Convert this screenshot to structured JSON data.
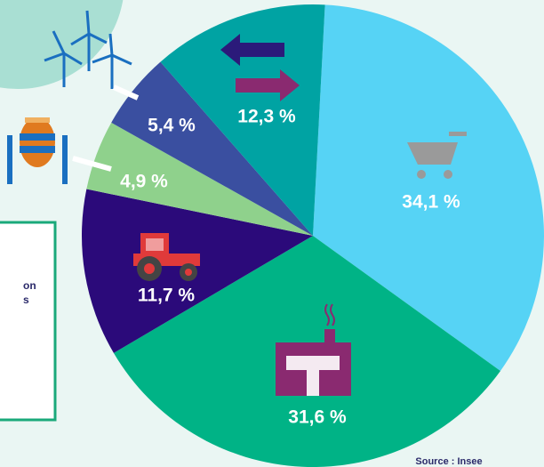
{
  "chart_data": {
    "type": "pie",
    "categories": [
      null,
      null,
      null,
      null,
      null,
      null
    ],
    "values": [
      34.1,
      31.6,
      11.7,
      4.9,
      5.4,
      12.3
    ],
    "value_labels": [
      "34,1 %",
      "31,6 %",
      "11,7 %",
      "4,9 %",
      "5,4 %",
      "12,3 %"
    ],
    "colors": [
      "#56d3f5",
      "#00b386",
      "#2b0a7a",
      "#8fd18c",
      "#3a4fa0",
      "#00a3a3"
    ],
    "box_text": [
      "on",
      "s"
    ],
    "source": "Source : Insee"
  }
}
